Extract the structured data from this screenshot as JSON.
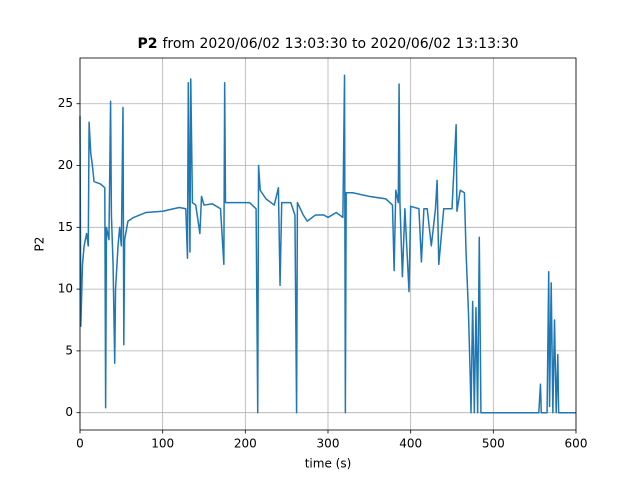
{
  "chart_data": {
    "type": "line",
    "title_bold": "P2",
    "title": "from 2020/06/02 13:03:30 to 2020/06/02 13:13:30",
    "xlabel": "time (s)",
    "ylabel": "P2",
    "color": "#1f77b4",
    "xlim": [
      0,
      600
    ],
    "xticks": [
      0,
      100,
      200,
      300,
      400,
      500,
      600
    ],
    "ylim": [
      -1.4,
      28.7
    ],
    "yticks": [
      0,
      5,
      10,
      15,
      20,
      25
    ],
    "grid": true,
    "x": [
      0,
      1,
      3,
      5,
      8,
      10,
      11,
      13,
      15,
      17,
      25,
      30,
      31,
      32,
      35,
      37,
      38,
      40,
      42,
      43,
      46,
      48,
      50,
      52,
      53,
      54,
      58,
      65,
      80,
      100,
      120,
      128,
      130,
      131,
      133,
      134,
      136,
      140,
      145,
      147,
      150,
      160,
      170,
      174,
      175,
      176,
      190,
      205,
      213,
      215,
      216,
      218,
      225,
      235,
      240,
      242,
      244,
      255,
      260,
      262,
      263,
      270,
      275,
      285,
      295,
      300,
      310,
      318,
      320,
      321,
      322,
      330,
      350,
      370,
      378,
      380,
      382,
      385,
      386,
      387,
      390,
      393,
      398,
      400,
      410,
      413,
      416,
      420,
      425,
      430,
      432,
      434,
      440,
      450,
      455,
      456,
      460,
      465,
      467,
      470,
      472,
      473,
      475,
      477,
      479,
      481,
      483,
      485,
      490,
      555,
      557,
      558,
      565,
      567,
      568,
      570,
      572,
      574,
      576,
      578,
      579,
      600
    ],
    "values": [
      24,
      7,
      12,
      13.5,
      14.5,
      13.5,
      23.5,
      21,
      20,
      18.7,
      18.5,
      18.2,
      0.4,
      15,
      14,
      25.2,
      16,
      12,
      4,
      10,
      13.5,
      15,
      13.5,
      24.7,
      5.5,
      14,
      15.5,
      15.8,
      16.2,
      16.3,
      16.6,
      16.5,
      12.5,
      26.7,
      13,
      27,
      17,
      16.8,
      14.5,
      17.5,
      16.8,
      16.9,
      16.5,
      12,
      26.7,
      17,
      17,
      17,
      16.5,
      0,
      20,
      18,
      17.3,
      16.8,
      18.2,
      10.3,
      17,
      17,
      16,
      0,
      17,
      16,
      15.5,
      16,
      16,
      15.8,
      16.2,
      15.8,
      27.3,
      0,
      17.8,
      17.8,
      17.5,
      17.3,
      16.8,
      11.5,
      18,
      17,
      26.6,
      17,
      11,
      16.5,
      9.8,
      16.7,
      16.5,
      12.2,
      16.5,
      16.5,
      13.5,
      16.5,
      18.8,
      12,
      16.5,
      16.5,
      23.3,
      16.3,
      18,
      17.8,
      13,
      8,
      3,
      0,
      9,
      0,
      8.5,
      0,
      14.2,
      0,
      0,
      0,
      2.3,
      0,
      0,
      11.4,
      0.5,
      10.5,
      0,
      7.5,
      0,
      4.7,
      0,
      0
    ]
  }
}
